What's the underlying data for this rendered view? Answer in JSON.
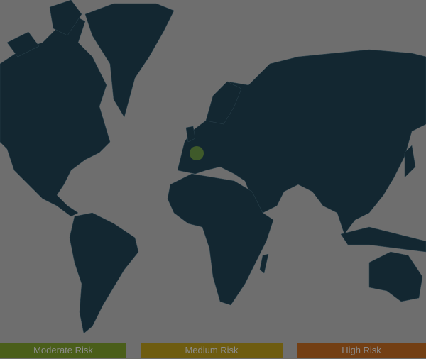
{
  "map": {
    "land_color": "#132731",
    "background_color": "#6e6e6e",
    "highlighted_regions": [
      {
        "country": "France",
        "risk": "Moderate Risk",
        "color": "#3f5a2a"
      }
    ]
  },
  "legend": {
    "items": [
      {
        "label": "Moderate Risk",
        "color": "#4a5e1a"
      },
      {
        "label": "Medium Risk",
        "color": "#6e5c10"
      },
      {
        "label": "High Risk",
        "color": "#733f14"
      }
    ]
  }
}
